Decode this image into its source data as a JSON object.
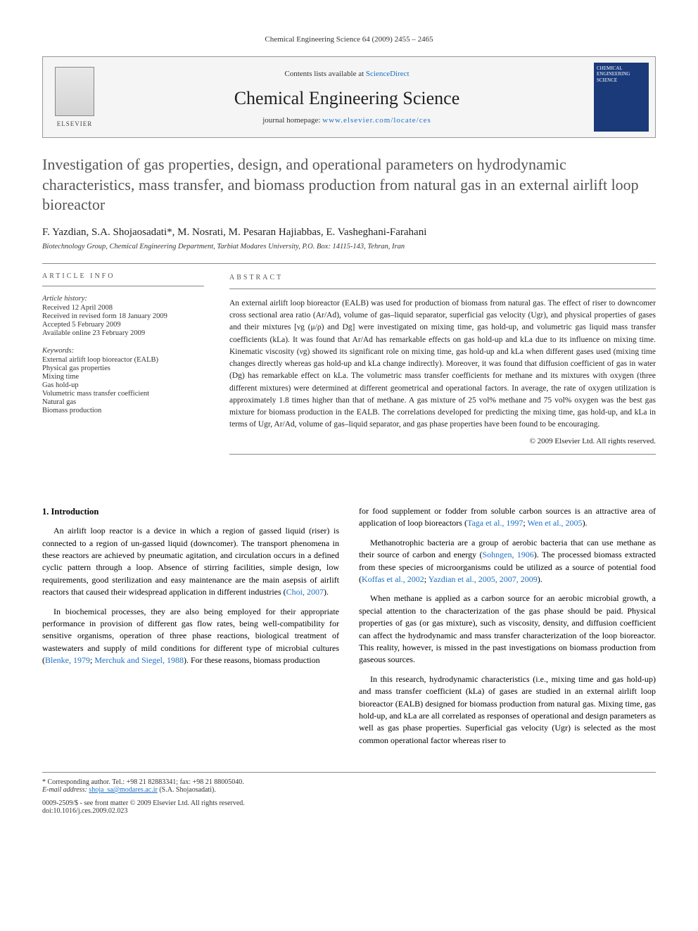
{
  "header": {
    "running_head": "Chemical Engineering Science 64 (2009) 2455 – 2465"
  },
  "banner": {
    "publisher_label": "ELSEVIER",
    "contents_prefix": "Contents lists available at ",
    "contents_link": "ScienceDirect",
    "journal_name": "Chemical Engineering Science",
    "homepage_prefix": "journal homepage: ",
    "homepage_url": "www.elsevier.com/locate/ces",
    "cover_text": "CHEMICAL ENGINEERING SCIENCE"
  },
  "title": "Investigation of gas properties, design, and operational parameters on hydrodynamic characteristics, mass transfer, and biomass production from natural gas in an external airlift loop bioreactor",
  "authors": "F. Yazdian, S.A. Shojaosadati*, M. Nosrati, M. Pesaran Hajiabbas, E. Vasheghani-Farahani",
  "affiliation": "Biotechnology Group, Chemical Engineering Department, Tarbiat Modares University, P.O. Box: 14115-143, Tehran, Iran",
  "article_info": {
    "label": "ARTICLE INFO",
    "history_title": "Article history:",
    "history": [
      "Received 12 April 2008",
      "Received in revised form 18 January 2009",
      "Accepted 5 February 2009",
      "Available online 23 February 2009"
    ],
    "keywords_title": "Keywords:",
    "keywords": [
      "External airlift loop bioreactor (EALB)",
      "Physical gas properties",
      "Mixing time",
      "Gas hold-up",
      "Volumetric mass transfer coefficient",
      "Natural gas",
      "Biomass production"
    ]
  },
  "abstract": {
    "label": "ABSTRACT",
    "text": "An external airlift loop bioreactor (EALB) was used for production of biomass from natural gas. The effect of riser to downcomer cross sectional area ratio (Ar/Ad), volume of gas–liquid separator, superficial gas velocity (Ugr), and physical properties of gases and their mixtures [νg (μ/ρ) and Dg] were investigated on mixing time, gas hold-up, and volumetric gas liquid mass transfer coefficients (kLa). It was found that Ar/Ad has remarkable effects on gas hold-up and kLa due to its influence on mixing time. Kinematic viscosity (νg) showed its significant role on mixing time, gas hold-up and kLa when different gases used (mixing time changes directly whereas gas hold-up and kLa change indirectly). Moreover, it was found that diffusion coefficient of gas in water (Dg) has remarkable effect on kLa. The volumetric mass transfer coefficients for methane and its mixtures with oxygen (three different mixtures) were determined at different geometrical and operational factors. In average, the rate of oxygen utilization is approximately 1.8 times higher than that of methane. A gas mixture of 25 vol% methane and 75 vol% oxygen was the best gas mixture for biomass production in the EALB. The correlations developed for predicting the mixing time, gas hold-up, and kLa in terms of Ugr, Ar/Ad, volume of gas–liquid separator, and gas phase properties have been found to be encouraging.",
    "copyright": "© 2009 Elsevier Ltd. All rights reserved."
  },
  "body": {
    "intro_heading": "1. Introduction",
    "paragraphs_left": [
      "An airlift loop reactor is a device in which a region of gassed liquid (riser) is connected to a region of un-gassed liquid (downcomer). The transport phenomena in these reactors are achieved by pneumatic agitation, and circulation occurs in a defined cyclic pattern through a loop. Absence of stirring facilities, simple design, low requirements, good sterilization and easy maintenance are the main asepsis of airlift reactors that caused their widespread application in different industries (Choi, 2007).",
      "In biochemical processes, they are also being employed for their appropriate performance in provision of different gas flow rates, being well-compatibility for sensitive organisms, operation of three phase reactions, biological treatment of wastewaters and supply of mild conditions for different type of microbial cultures (Blenke, 1979; Merchuk and Siegel, 1988). For these reasons, biomass production"
    ],
    "paragraphs_right": [
      "for food supplement or fodder from soluble carbon sources is an attractive area of application of loop bioreactors (Taga et al., 1997; Wen et al., 2005).",
      "Methanotrophic bacteria are a group of aerobic bacteria that can use methane as their source of carbon and energy (Sohngen, 1906). The processed biomass extracted from these species of microorganisms could be utilized as a source of potential food (Koffas et al., 2002; Yazdian et al., 2005, 2007, 2009).",
      "When methane is applied as a carbon source for an aerobic microbial growth, a special attention to the characterization of the gas phase should be paid. Physical properties of gas (or gas mixture), such as viscosity, density, and diffusion coefficient can affect the hydrodynamic and mass transfer characterization of the loop bioreactor. This reality, however, is missed in the past investigations on biomass production from gaseous sources.",
      "In this research, hydrodynamic characteristics (i.e., mixing time and gas hold-up) and mass transfer coefficient (kLa) of gases are studied in an external airlift loop bioreactor (EALB) designed for biomass production from natural gas. Mixing time, gas hold-up, and kLa are all correlated as responses of operational and design parameters as well as gas phase properties. Superficial gas velocity (Ugr) is selected as the most common operational factor whereas riser to"
    ],
    "citations_left": [
      "Choi, 2007",
      "Blenke, 1979",
      "Merchuk and Siegel, 1988"
    ],
    "citations_right": [
      "Taga et al., 1997",
      "Wen et al., 2005",
      "Sohngen, 1906",
      "Koffas et al., 2002",
      "Yazdian et al., 2005, 2007, 2009"
    ]
  },
  "footnotes": {
    "corresponding": "* Corresponding author. Tel.: +98 21 82883341; fax: +98 21 88005040.",
    "email_label": "E-mail address:",
    "email": "shoja_sa@modares.ac.ir",
    "email_suffix": "(S.A. Shojaosadati)."
  },
  "footer": {
    "issn_line": "0009-2509/$ - see front matter © 2009 Elsevier Ltd. All rights reserved.",
    "doi_line": "doi:10.1016/j.ces.2009.02.023"
  },
  "colors": {
    "link": "#1a6fc4",
    "title_gray": "#555555",
    "cover_bg": "#1a3a7a"
  }
}
